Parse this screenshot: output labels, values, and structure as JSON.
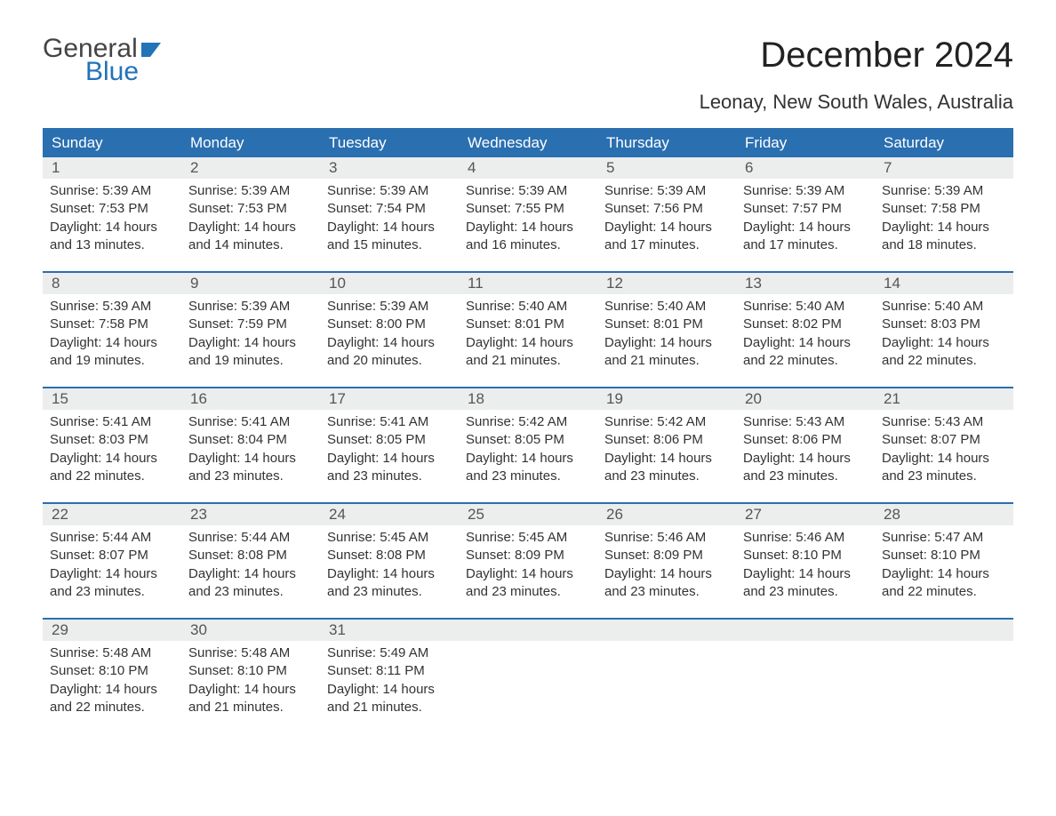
{
  "logo": {
    "text_top": "General",
    "text_bottom": "Blue"
  },
  "title": "December 2024",
  "location": "Leonay, New South Wales, Australia",
  "colors": {
    "header_blue": "#2a6fb0",
    "daynum_bg": "#eceded",
    "text": "#333333",
    "logo_blue": "#2273b8"
  },
  "days_of_week": [
    "Sunday",
    "Monday",
    "Tuesday",
    "Wednesday",
    "Thursday",
    "Friday",
    "Saturday"
  ],
  "weeks": [
    [
      {
        "n": "1",
        "sunrise": "Sunrise: 5:39 AM",
        "sunset": "Sunset: 7:53 PM",
        "dl1": "Daylight: 14 hours",
        "dl2": "and 13 minutes."
      },
      {
        "n": "2",
        "sunrise": "Sunrise: 5:39 AM",
        "sunset": "Sunset: 7:53 PM",
        "dl1": "Daylight: 14 hours",
        "dl2": "and 14 minutes."
      },
      {
        "n": "3",
        "sunrise": "Sunrise: 5:39 AM",
        "sunset": "Sunset: 7:54 PM",
        "dl1": "Daylight: 14 hours",
        "dl2": "and 15 minutes."
      },
      {
        "n": "4",
        "sunrise": "Sunrise: 5:39 AM",
        "sunset": "Sunset: 7:55 PM",
        "dl1": "Daylight: 14 hours",
        "dl2": "and 16 minutes."
      },
      {
        "n": "5",
        "sunrise": "Sunrise: 5:39 AM",
        "sunset": "Sunset: 7:56 PM",
        "dl1": "Daylight: 14 hours",
        "dl2": "and 17 minutes."
      },
      {
        "n": "6",
        "sunrise": "Sunrise: 5:39 AM",
        "sunset": "Sunset: 7:57 PM",
        "dl1": "Daylight: 14 hours",
        "dl2": "and 17 minutes."
      },
      {
        "n": "7",
        "sunrise": "Sunrise: 5:39 AM",
        "sunset": "Sunset: 7:58 PM",
        "dl1": "Daylight: 14 hours",
        "dl2": "and 18 minutes."
      }
    ],
    [
      {
        "n": "8",
        "sunrise": "Sunrise: 5:39 AM",
        "sunset": "Sunset: 7:58 PM",
        "dl1": "Daylight: 14 hours",
        "dl2": "and 19 minutes."
      },
      {
        "n": "9",
        "sunrise": "Sunrise: 5:39 AM",
        "sunset": "Sunset: 7:59 PM",
        "dl1": "Daylight: 14 hours",
        "dl2": "and 19 minutes."
      },
      {
        "n": "10",
        "sunrise": "Sunrise: 5:39 AM",
        "sunset": "Sunset: 8:00 PM",
        "dl1": "Daylight: 14 hours",
        "dl2": "and 20 minutes."
      },
      {
        "n": "11",
        "sunrise": "Sunrise: 5:40 AM",
        "sunset": "Sunset: 8:01 PM",
        "dl1": "Daylight: 14 hours",
        "dl2": "and 21 minutes."
      },
      {
        "n": "12",
        "sunrise": "Sunrise: 5:40 AM",
        "sunset": "Sunset: 8:01 PM",
        "dl1": "Daylight: 14 hours",
        "dl2": "and 21 minutes."
      },
      {
        "n": "13",
        "sunrise": "Sunrise: 5:40 AM",
        "sunset": "Sunset: 8:02 PM",
        "dl1": "Daylight: 14 hours",
        "dl2": "and 22 minutes."
      },
      {
        "n": "14",
        "sunrise": "Sunrise: 5:40 AM",
        "sunset": "Sunset: 8:03 PM",
        "dl1": "Daylight: 14 hours",
        "dl2": "and 22 minutes."
      }
    ],
    [
      {
        "n": "15",
        "sunrise": "Sunrise: 5:41 AM",
        "sunset": "Sunset: 8:03 PM",
        "dl1": "Daylight: 14 hours",
        "dl2": "and 22 minutes."
      },
      {
        "n": "16",
        "sunrise": "Sunrise: 5:41 AM",
        "sunset": "Sunset: 8:04 PM",
        "dl1": "Daylight: 14 hours",
        "dl2": "and 23 minutes."
      },
      {
        "n": "17",
        "sunrise": "Sunrise: 5:41 AM",
        "sunset": "Sunset: 8:05 PM",
        "dl1": "Daylight: 14 hours",
        "dl2": "and 23 minutes."
      },
      {
        "n": "18",
        "sunrise": "Sunrise: 5:42 AM",
        "sunset": "Sunset: 8:05 PM",
        "dl1": "Daylight: 14 hours",
        "dl2": "and 23 minutes."
      },
      {
        "n": "19",
        "sunrise": "Sunrise: 5:42 AM",
        "sunset": "Sunset: 8:06 PM",
        "dl1": "Daylight: 14 hours",
        "dl2": "and 23 minutes."
      },
      {
        "n": "20",
        "sunrise": "Sunrise: 5:43 AM",
        "sunset": "Sunset: 8:06 PM",
        "dl1": "Daylight: 14 hours",
        "dl2": "and 23 minutes."
      },
      {
        "n": "21",
        "sunrise": "Sunrise: 5:43 AM",
        "sunset": "Sunset: 8:07 PM",
        "dl1": "Daylight: 14 hours",
        "dl2": "and 23 minutes."
      }
    ],
    [
      {
        "n": "22",
        "sunrise": "Sunrise: 5:44 AM",
        "sunset": "Sunset: 8:07 PM",
        "dl1": "Daylight: 14 hours",
        "dl2": "and 23 minutes."
      },
      {
        "n": "23",
        "sunrise": "Sunrise: 5:44 AM",
        "sunset": "Sunset: 8:08 PM",
        "dl1": "Daylight: 14 hours",
        "dl2": "and 23 minutes."
      },
      {
        "n": "24",
        "sunrise": "Sunrise: 5:45 AM",
        "sunset": "Sunset: 8:08 PM",
        "dl1": "Daylight: 14 hours",
        "dl2": "and 23 minutes."
      },
      {
        "n": "25",
        "sunrise": "Sunrise: 5:45 AM",
        "sunset": "Sunset: 8:09 PM",
        "dl1": "Daylight: 14 hours",
        "dl2": "and 23 minutes."
      },
      {
        "n": "26",
        "sunrise": "Sunrise: 5:46 AM",
        "sunset": "Sunset: 8:09 PM",
        "dl1": "Daylight: 14 hours",
        "dl2": "and 23 minutes."
      },
      {
        "n": "27",
        "sunrise": "Sunrise: 5:46 AM",
        "sunset": "Sunset: 8:10 PM",
        "dl1": "Daylight: 14 hours",
        "dl2": "and 23 minutes."
      },
      {
        "n": "28",
        "sunrise": "Sunrise: 5:47 AM",
        "sunset": "Sunset: 8:10 PM",
        "dl1": "Daylight: 14 hours",
        "dl2": "and 22 minutes."
      }
    ],
    [
      {
        "n": "29",
        "sunrise": "Sunrise: 5:48 AM",
        "sunset": "Sunset: 8:10 PM",
        "dl1": "Daylight: 14 hours",
        "dl2": "and 22 minutes."
      },
      {
        "n": "30",
        "sunrise": "Sunrise: 5:48 AM",
        "sunset": "Sunset: 8:10 PM",
        "dl1": "Daylight: 14 hours",
        "dl2": "and 21 minutes."
      },
      {
        "n": "31",
        "sunrise": "Sunrise: 5:49 AM",
        "sunset": "Sunset: 8:11 PM",
        "dl1": "Daylight: 14 hours",
        "dl2": "and 21 minutes."
      },
      {
        "empty": true
      },
      {
        "empty": true
      },
      {
        "empty": true
      },
      {
        "empty": true
      }
    ]
  ]
}
